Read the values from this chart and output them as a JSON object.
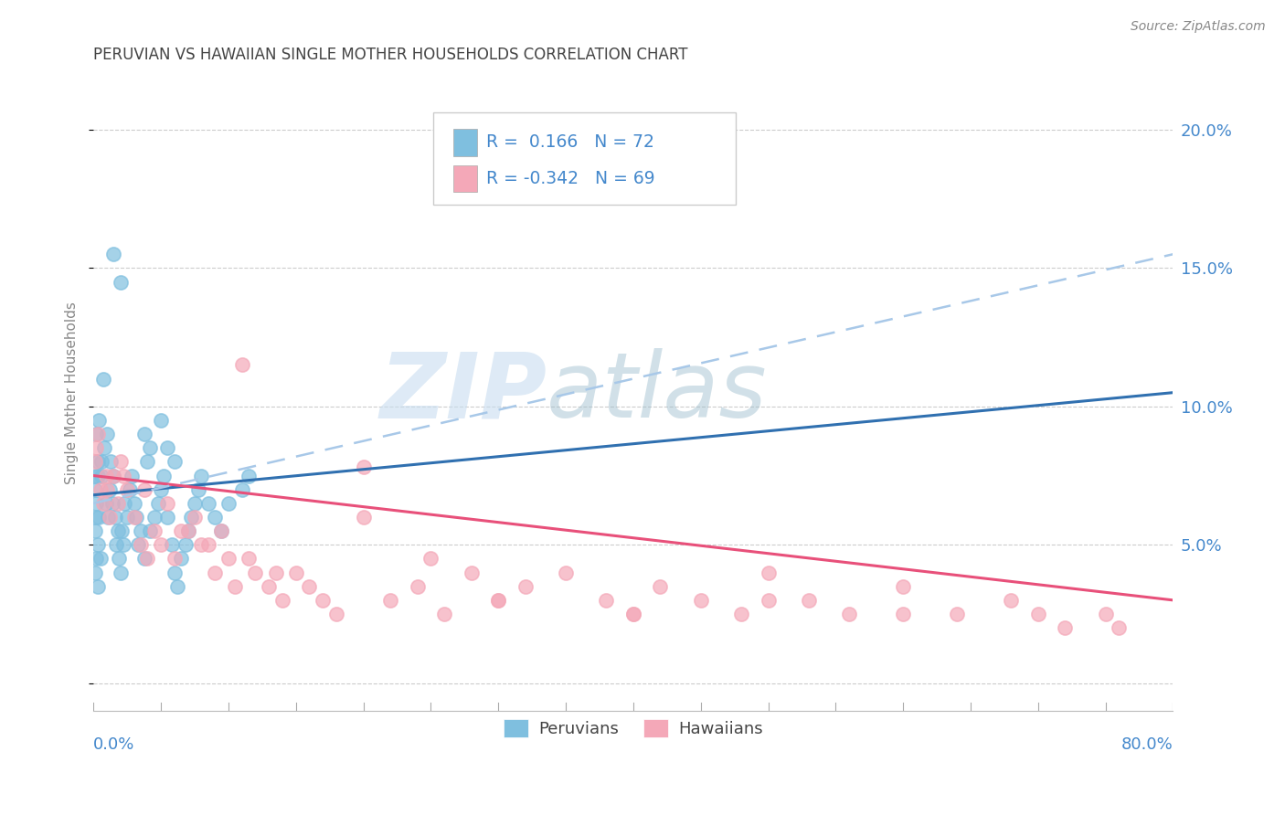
{
  "title": "PERUVIAN VS HAWAIIAN SINGLE MOTHER HOUSEHOLDS CORRELATION CHART",
  "source": "Source: ZipAtlas.com",
  "ylabel": "Single Mother Households",
  "yticks": [
    0.0,
    0.05,
    0.1,
    0.15,
    0.2
  ],
  "ytick_labels": [
    "",
    "5.0%",
    "10.0%",
    "15.0%",
    "20.0%"
  ],
  "xlim": [
    0.0,
    0.8
  ],
  "ylim": [
    -0.01,
    0.22
  ],
  "peruvian_color": "#7fbfdf",
  "hawaiian_color": "#f4a8b8",
  "peruvian_line_color": "#3070b0",
  "hawaiian_line_color": "#e8507a",
  "dashed_line_color": "#a8c8e8",
  "r_peruvian": 0.166,
  "n_peruvian": 72,
  "r_hawaiian": -0.342,
  "n_hawaiian": 69,
  "background_color": "#ffffff",
  "grid_color": "#cccccc",
  "title_color": "#444444",
  "axis_label_color": "#4488cc",
  "watermark_zip": "ZIP",
  "watermark_atlas": "atlas",
  "legend_text_color": "#4488cc",
  "peruvian_scatter_x": [
    0.001,
    0.002,
    0.003,
    0.002,
    0.001,
    0.003,
    0.004,
    0.002,
    0.001,
    0.003,
    0.004,
    0.002,
    0.001,
    0.003,
    0.005,
    0.006,
    0.007,
    0.008,
    0.006,
    0.009,
    0.01,
    0.012,
    0.011,
    0.013,
    0.015,
    0.014,
    0.016,
    0.018,
    0.017,
    0.019,
    0.02,
    0.022,
    0.021,
    0.025,
    0.023,
    0.027,
    0.028,
    0.03,
    0.032,
    0.035,
    0.033,
    0.038,
    0.04,
    0.042,
    0.045,
    0.048,
    0.05,
    0.052,
    0.055,
    0.058,
    0.06,
    0.062,
    0.065,
    0.068,
    0.07,
    0.072,
    0.075,
    0.078,
    0.08,
    0.085,
    0.09,
    0.095,
    0.1,
    0.11,
    0.115,
    0.038,
    0.042,
    0.05,
    0.055,
    0.06,
    0.015,
    0.02
  ],
  "peruvian_scatter_y": [
    0.075,
    0.09,
    0.08,
    0.065,
    0.07,
    0.075,
    0.095,
    0.06,
    0.055,
    0.05,
    0.06,
    0.045,
    0.04,
    0.035,
    0.045,
    0.08,
    0.11,
    0.085,
    0.075,
    0.065,
    0.09,
    0.07,
    0.06,
    0.08,
    0.075,
    0.065,
    0.06,
    0.055,
    0.05,
    0.045,
    0.04,
    0.05,
    0.055,
    0.06,
    0.065,
    0.07,
    0.075,
    0.065,
    0.06,
    0.055,
    0.05,
    0.045,
    0.08,
    0.055,
    0.06,
    0.065,
    0.07,
    0.075,
    0.06,
    0.05,
    0.04,
    0.035,
    0.045,
    0.05,
    0.055,
    0.06,
    0.065,
    0.07,
    0.075,
    0.065,
    0.06,
    0.055,
    0.065,
    0.07,
    0.075,
    0.09,
    0.085,
    0.095,
    0.085,
    0.08,
    0.155,
    0.145
  ],
  "hawaiian_scatter_x": [
    0.001,
    0.002,
    0.003,
    0.005,
    0.007,
    0.009,
    0.012,
    0.015,
    0.018,
    0.02,
    0.025,
    0.03,
    0.035,
    0.04,
    0.045,
    0.05,
    0.06,
    0.07,
    0.08,
    0.09,
    0.1,
    0.11,
    0.12,
    0.13,
    0.14,
    0.15,
    0.16,
    0.17,
    0.18,
    0.2,
    0.22,
    0.24,
    0.26,
    0.28,
    0.3,
    0.32,
    0.35,
    0.38,
    0.4,
    0.42,
    0.45,
    0.48,
    0.5,
    0.53,
    0.56,
    0.6,
    0.64,
    0.68,
    0.72,
    0.75,
    0.01,
    0.022,
    0.038,
    0.055,
    0.075,
    0.095,
    0.115,
    0.135,
    0.2,
    0.25,
    0.3,
    0.4,
    0.5,
    0.6,
    0.7,
    0.76,
    0.065,
    0.085,
    0.105
  ],
  "hawaiian_scatter_y": [
    0.08,
    0.085,
    0.09,
    0.07,
    0.065,
    0.075,
    0.06,
    0.075,
    0.065,
    0.08,
    0.07,
    0.06,
    0.05,
    0.045,
    0.055,
    0.05,
    0.045,
    0.055,
    0.05,
    0.04,
    0.045,
    0.115,
    0.04,
    0.035,
    0.03,
    0.04,
    0.035,
    0.03,
    0.025,
    0.078,
    0.03,
    0.035,
    0.025,
    0.04,
    0.03,
    0.035,
    0.04,
    0.03,
    0.025,
    0.035,
    0.03,
    0.025,
    0.04,
    0.03,
    0.025,
    0.035,
    0.025,
    0.03,
    0.02,
    0.025,
    0.07,
    0.075,
    0.07,
    0.065,
    0.06,
    0.055,
    0.045,
    0.04,
    0.06,
    0.045,
    0.03,
    0.025,
    0.03,
    0.025,
    0.025,
    0.02,
    0.055,
    0.05,
    0.035
  ]
}
